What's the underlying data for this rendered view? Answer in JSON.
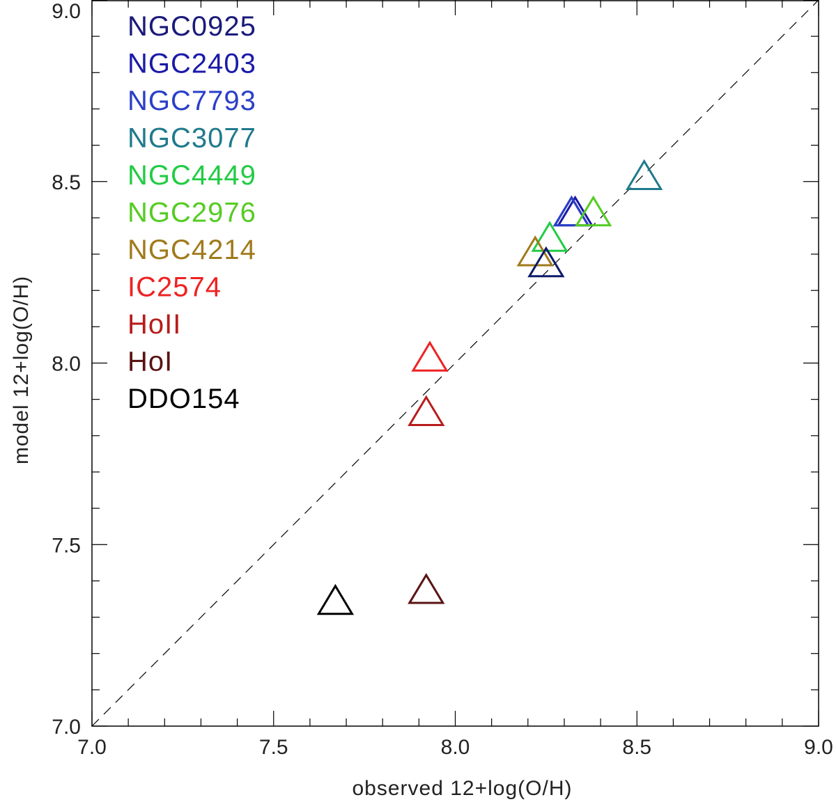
{
  "chart_data": {
    "type": "scatter",
    "xlabel": "observed 12+log(O/H)",
    "ylabel": "model 12+log(O/H)",
    "xlim": [
      7.0,
      9.0
    ],
    "ylim": [
      7.0,
      9.0
    ],
    "xticks": [
      "7.0",
      "7.5",
      "8.0",
      "8.5",
      "9.0"
    ],
    "yticks": [
      "7.0",
      "7.5",
      "8.0",
      "8.5",
      "9.0"
    ],
    "reference_line": "y = x (dashed)",
    "marker": "open-triangle",
    "legend_placement": "top-left",
    "series": [
      {
        "name": "NGC0925",
        "color": "#1a1a7a",
        "x": 8.32,
        "y": 8.41
      },
      {
        "name": "NGC2403",
        "color": "#1a1aa8",
        "x": 8.33,
        "y": 8.41
      },
      {
        "name": "NGC7793",
        "color": "#2a3fc8",
        "x": 8.32,
        "y": 8.41
      },
      {
        "name": "NGC3077",
        "color": "#1f7a8c",
        "x": 8.52,
        "y": 8.51
      },
      {
        "name": "NGC4449",
        "color": "#22cc44",
        "x": 8.26,
        "y": 8.34
      },
      {
        "name": "NGC2976",
        "color": "#55cc22",
        "x": 8.38,
        "y": 8.41
      },
      {
        "name": "NGC4214",
        "color": "#a07a1c",
        "x": 8.22,
        "y": 8.3
      },
      {
        "name": "IC2574",
        "color": "#ee2222",
        "x": 7.93,
        "y": 8.01
      },
      {
        "name": "HoII",
        "color": "#b81c1c",
        "x": 7.92,
        "y": 7.86
      },
      {
        "name": "HoI",
        "color": "#5a1414",
        "x": 7.92,
        "y": 7.37
      },
      {
        "name": "DDO154",
        "color": "#000000",
        "x": 7.67,
        "y": 7.34
      },
      {
        "name": "",
        "color": "#0d1a6a",
        "x": 8.25,
        "y": 8.27
      }
    ]
  }
}
